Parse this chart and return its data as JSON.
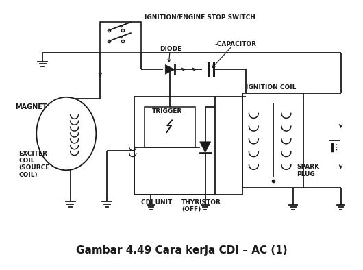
{
  "title": "Gambar 4.49 Cara kerja CDI – AC (1)",
  "title_fontsize": 11,
  "title_fontweight": "bold",
  "bg_color": "#ffffff",
  "fg_color": "#1a1a1a",
  "fig_width": 5.3,
  "fig_height": 3.94,
  "dpi": 100,
  "labels": {
    "ignition_stop": "IGNITION/ENGINE STOP SWITCH",
    "diode": "DIODE",
    "capacitor": "-CAPACITOR",
    "ignition_coil": "IGNITION COIL",
    "magnet": "MAGNET",
    "trigger": "TRIGGER",
    "exciter": "EXCITER\nCOIL\n(SOURCE\nCOIL)",
    "cdi": "CDI UNIT",
    "thyristor": "THYRISTOR\n(OFF)",
    "spark": "SPARK\nPLUG"
  }
}
